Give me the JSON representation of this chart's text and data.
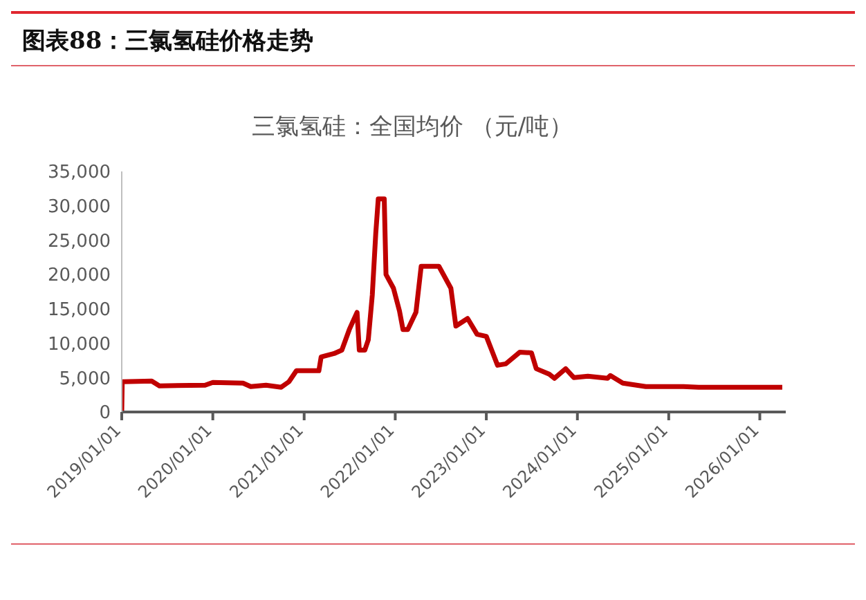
{
  "chart_data": {
    "type": "line",
    "title": "图表88：三氯氢硅价格走势",
    "subtitle": "三氯氢硅：全国均价 （元/吨）",
    "x": [
      "2019-01-01",
      "2019-01-03",
      "2019-05-01",
      "2019-06-01",
      "2019-12-01",
      "2020-01-01",
      "2020-05-01",
      "2020-06-01",
      "2020-08-01",
      "2020-10-01",
      "2020-11-01",
      "2020-12-01",
      "2021-03-01",
      "2021-03-10",
      "2021-05-01",
      "2021-06-01",
      "2021-07-01",
      "2021-08-01",
      "2021-08-10",
      "2021-09-01",
      "2021-09-15",
      "2021-10-01",
      "2021-10-15",
      "2021-10-25",
      "2021-11-18",
      "2021-11-25",
      "2021-12-25",
      "2022-01-18",
      "2022-02-01",
      "2022-02-20",
      "2022-03-25",
      "2022-04-15",
      "2022-06-25",
      "2022-08-12",
      "2022-09-01",
      "2022-10-18",
      "2022-11-25",
      "2023-01-01",
      "2023-02-15",
      "2023-03-20",
      "2023-05-15",
      "2023-07-01",
      "2023-07-20",
      "2023-09-10",
      "2023-10-01",
      "2023-11-15",
      "2023-12-18",
      "2024-02-12",
      "2024-05-01",
      "2024-05-12",
      "2024-07-01",
      "2024-10-01",
      "2025-03-01",
      "2025-05-01",
      "2026-04-01"
    ],
    "series": [
      {
        "color": "#c00000",
        "values": [
          0,
          4400,
          4500,
          3800,
          3900,
          4300,
          4200,
          3700,
          3900,
          3600,
          4400,
          6000,
          6000,
          8000,
          8500,
          9000,
          12000,
          14500,
          9000,
          9000,
          10500,
          17000,
          26000,
          31000,
          31000,
          20000,
          18000,
          14700,
          12000,
          12000,
          14500,
          21200,
          21200,
          18000,
          12500,
          13600,
          11300,
          11000,
          6800,
          7000,
          8700,
          8600,
          6300,
          5500,
          4900,
          6300,
          5000,
          5200,
          4900,
          5300,
          4200,
          3700,
          3700,
          3600,
          3600
        ]
      }
    ],
    "xlim": [
      "2019-01-01",
      "2026-04-15"
    ],
    "xticks": [
      {
        "value": "2019-01-01",
        "label": "2019/01/01"
      },
      {
        "value": "2020-01-01",
        "label": "2020/01/01"
      },
      {
        "value": "2021-01-01",
        "label": "2021/01/01"
      },
      {
        "value": "2022-01-01",
        "label": "2022/01/01"
      },
      {
        "value": "2023-01-01",
        "label": "2023/01/01"
      },
      {
        "value": "2024-01-01",
        "label": "2024/01/01"
      },
      {
        "value": "2025-01-01",
        "label": "2025/01/01"
      },
      {
        "value": "2026-01-01",
        "label": "2026/01/01"
      }
    ],
    "ylim": [
      0,
      35000
    ],
    "yticks": [
      0,
      {
        "value": 5000,
        "label": "5,000"
      },
      {
        "value": 10000,
        "label": "10,000"
      },
      {
        "value": 15000,
        "label": "15,000"
      },
      {
        "value": 20000,
        "label": "20,000"
      },
      {
        "value": 25000,
        "label": "25,000"
      },
      {
        "value": 30000,
        "label": "30,000"
      },
      {
        "value": 35000,
        "label": "35,000"
      }
    ],
    "grid": false,
    "legend": false,
    "marker": "none",
    "line_style": "solid"
  }
}
